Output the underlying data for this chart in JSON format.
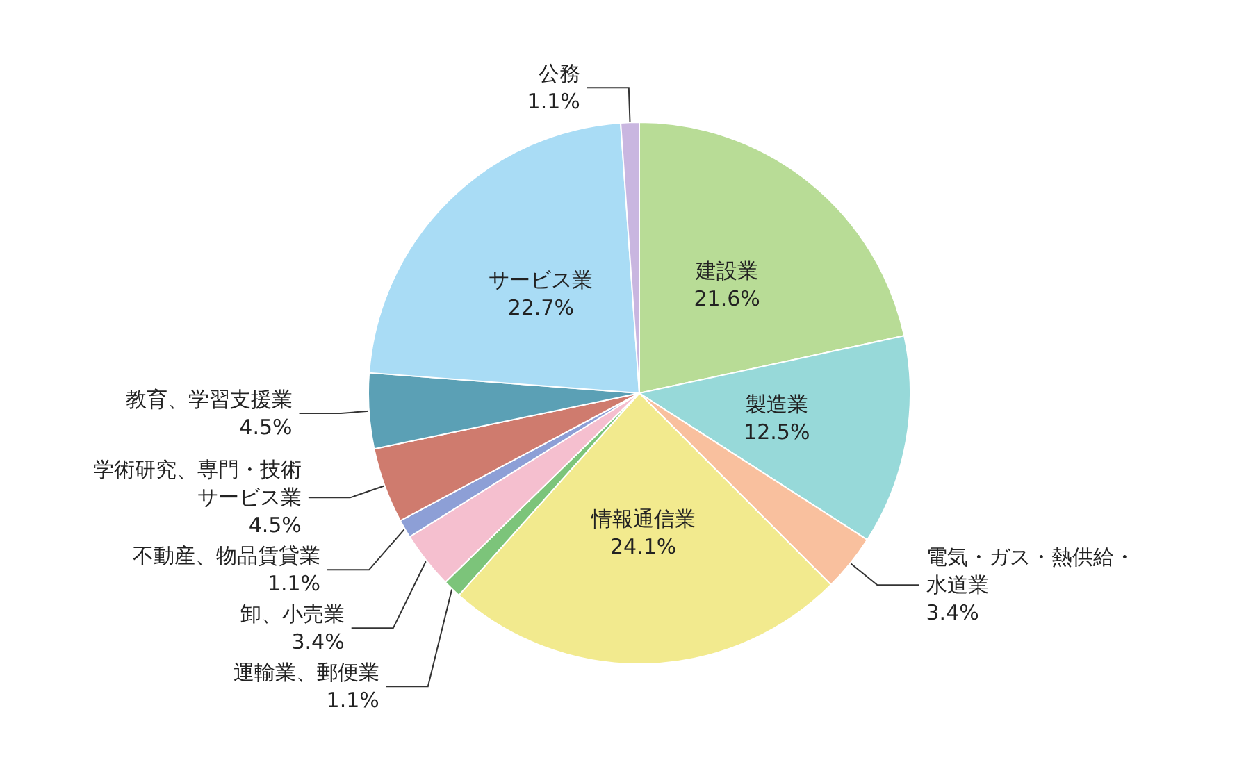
{
  "chart_data": {
    "type": "pie",
    "categories": [
      "建設業",
      "製造業",
      "電気・ガス・熱供給・水道業",
      "情報通信業",
      "運輸業、郵便業",
      "卸、小売業",
      "不動産、物品賃貸業",
      "学術研究、専門・技術サービス業",
      "教育、学習支援業",
      "サービス業",
      "公務"
    ],
    "values": [
      21.6,
      12.5,
      3.4,
      24.1,
      1.1,
      3.4,
      1.1,
      4.5,
      4.5,
      22.7,
      1.1
    ],
    "value_labels": [
      "21.6%",
      "12.5%",
      "3.4%",
      "24.1%",
      "1.1%",
      "3.4%",
      "1.1%",
      "4.5%",
      "4.5%",
      "22.7%",
      "1.1%"
    ],
    "colors": [
      "#b8dc96",
      "#97d9d9",
      "#f9c09e",
      "#f2ea8e",
      "#7cc47a",
      "#f5bfcf",
      "#8d9fd6",
      "#cf7b6e",
      "#5ba0b5",
      "#a9dcf5",
      "#c9b6e0"
    ],
    "legend": false
  }
}
